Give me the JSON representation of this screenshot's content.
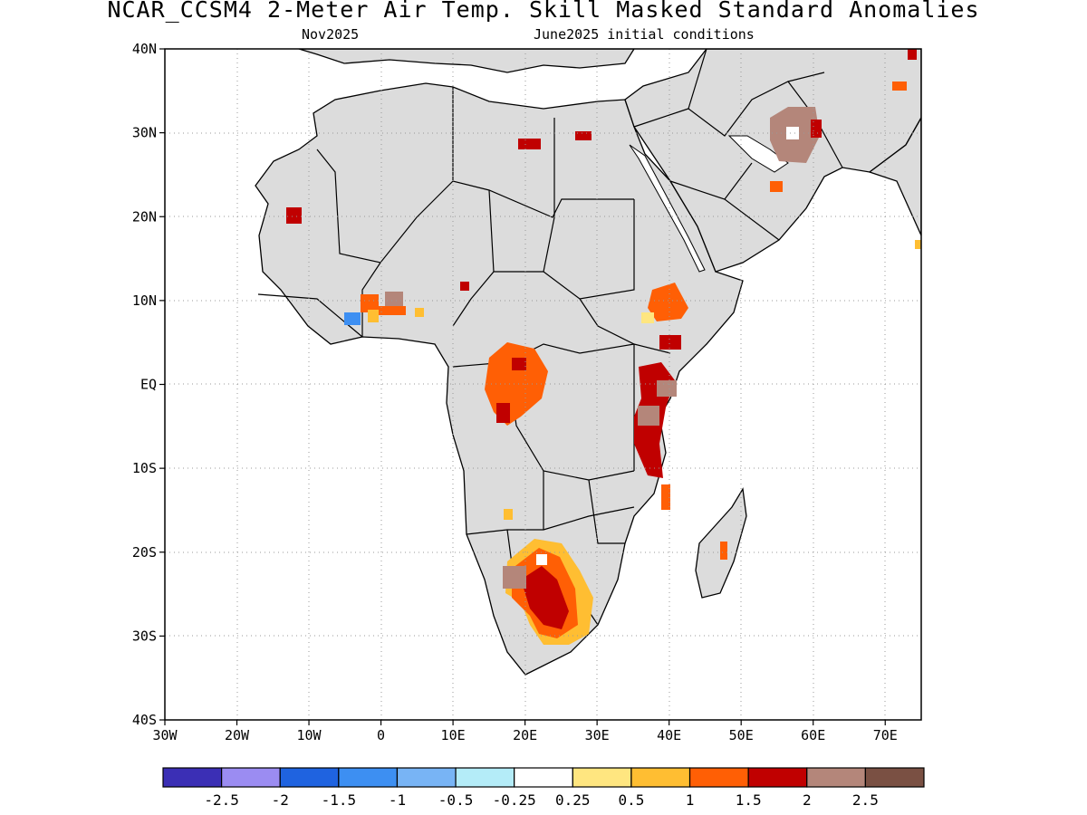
{
  "title": "NCAR_CCSM4 2-Meter Air Temp. Skill Masked Standard Anomalies",
  "subtitle_left": "Nov2025",
  "subtitle_right": "June2025 initial conditions",
  "map": {
    "lon_range": [
      -30,
      75
    ],
    "lat_range": [
      -40,
      40
    ],
    "x_tick_labels": [
      "30W",
      "20W",
      "10W",
      "0",
      "10E",
      "20E",
      "30E",
      "40E",
      "50E",
      "60E",
      "70E"
    ],
    "y_tick_labels": [
      "40N",
      "30N",
      "20N",
      "10N",
      "EQ",
      "10S",
      "20S",
      "30S",
      "40S"
    ],
    "grid": "dotted",
    "land_color": "#dcdcdc",
    "ocean_color": "#ffffff"
  },
  "colorbar": {
    "colors": [
      "#3b2fb5",
      "#9b8cf2",
      "#1f63e0",
      "#3d8ff2",
      "#78b4f5",
      "#b4ecf8",
      "#ffffff",
      "#ffe680",
      "#ffbe32",
      "#ff5f05",
      "#c00000",
      "#b4867a",
      "#7a5043"
    ],
    "tick_labels": [
      "-2.5",
      "-2",
      "-1.5",
      "-1",
      "-0.5",
      "-0.25",
      "0.25",
      "0.5",
      "1",
      "1.5",
      "2",
      "2.5"
    ]
  }
}
